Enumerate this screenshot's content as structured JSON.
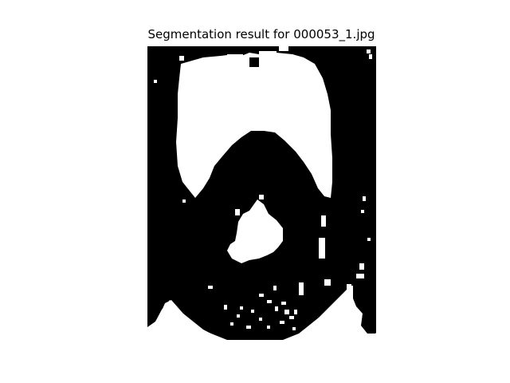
{
  "figure": {
    "title": "Segmentation result for 000053_1.jpg"
  },
  "image": {
    "description_name": "binary-segmentation-mask",
    "colors": {
      "foreground": "#ffffff",
      "background": "#000000"
    }
  }
}
